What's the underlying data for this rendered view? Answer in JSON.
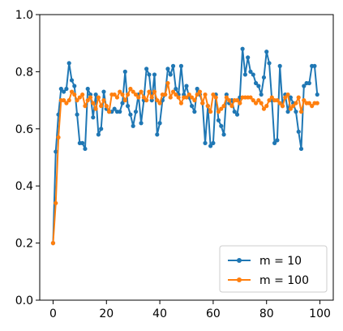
{
  "chart_data": {
    "type": "line",
    "title": "",
    "xlabel": "",
    "ylabel": "",
    "xlim": [
      -5,
      105
    ],
    "ylim": [
      0.0,
      1.0
    ],
    "xticks": [
      0,
      20,
      40,
      60,
      80,
      100
    ],
    "yticks": [
      0.0,
      0.2,
      0.4,
      0.6,
      0.8,
      1.0
    ],
    "xtick_labels": [
      "0",
      "20",
      "40",
      "60",
      "80",
      "100"
    ],
    "ytick_labels": [
      "0.0",
      "0.2",
      "0.4",
      "0.6",
      "0.8",
      "1.0"
    ],
    "grid": false,
    "legend_position": "lower-right",
    "series": [
      {
        "name": "m = 10",
        "color": "#1f77b4",
        "x": [
          0,
          1,
          2,
          3,
          4,
          5,
          6,
          7,
          8,
          9,
          10,
          11,
          12,
          13,
          14,
          15,
          16,
          17,
          18,
          19,
          20,
          21,
          22,
          23,
          24,
          25,
          26,
          27,
          28,
          29,
          30,
          31,
          32,
          33,
          34,
          35,
          36,
          37,
          38,
          39,
          40,
          41,
          42,
          43,
          44,
          45,
          46,
          47,
          48,
          49,
          50,
          51,
          52,
          53,
          54,
          55,
          56,
          57,
          58,
          59,
          60,
          61,
          62,
          63,
          64,
          65,
          66,
          67,
          68,
          69,
          70,
          71,
          72,
          73,
          74,
          75,
          76,
          77,
          78,
          79,
          80,
          81,
          82,
          83,
          84,
          85,
          86,
          87,
          88,
          89,
          90,
          91,
          92,
          93,
          94,
          95,
          96,
          97,
          98,
          99
        ],
        "values": [
          0.2,
          0.52,
          0.65,
          0.74,
          0.73,
          0.74,
          0.83,
          0.77,
          0.75,
          0.65,
          0.55,
          0.55,
          0.53,
          0.74,
          0.72,
          0.64,
          0.72,
          0.58,
          0.6,
          0.73,
          0.67,
          0.66,
          0.66,
          0.67,
          0.66,
          0.66,
          0.69,
          0.8,
          0.68,
          0.65,
          0.61,
          0.66,
          0.72,
          0.62,
          0.7,
          0.81,
          0.79,
          0.7,
          0.79,
          0.58,
          0.62,
          0.7,
          0.72,
          0.81,
          0.79,
          0.82,
          0.74,
          0.72,
          0.82,
          0.72,
          0.75,
          0.71,
          0.68,
          0.66,
          0.74,
          0.72,
          0.69,
          0.55,
          0.68,
          0.54,
          0.55,
          0.72,
          0.63,
          0.61,
          0.58,
          0.72,
          0.69,
          0.7,
          0.66,
          0.65,
          0.71,
          0.88,
          0.79,
          0.85,
          0.8,
          0.79,
          0.76,
          0.75,
          0.72,
          0.78,
          0.87,
          0.83,
          0.7,
          0.55,
          0.56,
          0.82,
          0.68,
          0.72,
          0.66,
          0.71,
          0.69,
          0.66,
          0.59,
          0.53,
          0.75,
          0.76,
          0.76,
          0.82,
          0.82,
          0.72
        ]
      },
      {
        "name": "m = 100",
        "color": "#ff7f0e",
        "x": [
          0,
          1,
          2,
          3,
          4,
          5,
          6,
          7,
          8,
          9,
          10,
          11,
          12,
          13,
          14,
          15,
          16,
          17,
          18,
          19,
          20,
          21,
          22,
          23,
          24,
          25,
          26,
          27,
          28,
          29,
          30,
          31,
          32,
          33,
          34,
          35,
          36,
          37,
          38,
          39,
          40,
          41,
          42,
          43,
          44,
          45,
          46,
          47,
          48,
          49,
          50,
          51,
          52,
          53,
          54,
          55,
          56,
          57,
          58,
          59,
          60,
          61,
          62,
          63,
          64,
          65,
          66,
          67,
          68,
          69,
          70,
          71,
          72,
          73,
          74,
          75,
          76,
          77,
          78,
          79,
          80,
          81,
          82,
          83,
          84,
          85,
          86,
          87,
          88,
          89,
          90,
          91,
          92,
          93,
          94,
          95,
          96,
          97,
          98,
          99
        ],
        "values": [
          0.2,
          0.34,
          0.57,
          0.7,
          0.7,
          0.69,
          0.7,
          0.73,
          0.72,
          0.7,
          0.71,
          0.72,
          0.68,
          0.7,
          0.71,
          0.69,
          0.67,
          0.71,
          0.68,
          0.7,
          0.68,
          0.66,
          0.72,
          0.72,
          0.71,
          0.73,
          0.72,
          0.7,
          0.72,
          0.74,
          0.73,
          0.72,
          0.71,
          0.73,
          0.71,
          0.7,
          0.73,
          0.71,
          0.73,
          0.7,
          0.69,
          0.72,
          0.72,
          0.76,
          0.71,
          0.73,
          0.72,
          0.71,
          0.69,
          0.71,
          0.71,
          0.72,
          0.71,
          0.7,
          0.72,
          0.73,
          0.69,
          0.72,
          0.68,
          0.66,
          0.72,
          0.71,
          0.66,
          0.67,
          0.68,
          0.71,
          0.7,
          0.68,
          0.7,
          0.7,
          0.69,
          0.71,
          0.71,
          0.71,
          0.71,
          0.7,
          0.69,
          0.7,
          0.69,
          0.67,
          0.68,
          0.7,
          0.71,
          0.7,
          0.7,
          0.69,
          0.68,
          0.71,
          0.72,
          0.67,
          0.68,
          0.69,
          0.71,
          0.66,
          0.7,
          0.69,
          0.69,
          0.68,
          0.69,
          0.69
        ]
      }
    ]
  }
}
